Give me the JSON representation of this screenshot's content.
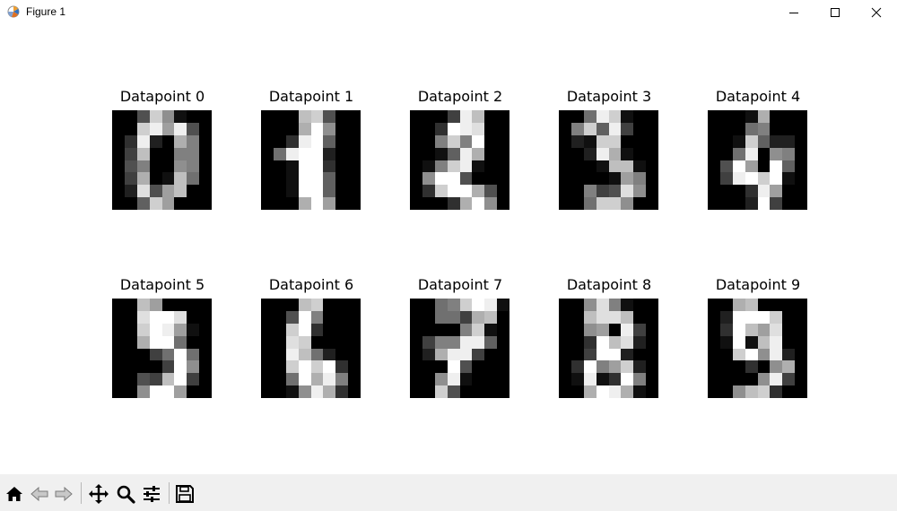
{
  "window": {
    "title": "Figure 1"
  },
  "figure": {
    "panels": [
      {
        "title": "Datapoint 0",
        "pixels": [
          [
            0,
            0,
            5,
            13,
            9,
            1,
            0,
            0
          ],
          [
            0,
            0,
            13,
            15,
            10,
            15,
            5,
            0
          ],
          [
            0,
            3,
            15,
            2,
            0,
            11,
            8,
            0
          ],
          [
            0,
            4,
            12,
            0,
            0,
            8,
            8,
            0
          ],
          [
            0,
            5,
            8,
            0,
            0,
            9,
            8,
            0
          ],
          [
            0,
            4,
            11,
            0,
            1,
            12,
            7,
            0
          ],
          [
            0,
            2,
            14,
            5,
            10,
            12,
            0,
            0
          ],
          [
            0,
            0,
            6,
            13,
            10,
            0,
            0,
            0
          ]
        ]
      },
      {
        "title": "Datapoint 1",
        "pixels": [
          [
            0,
            0,
            0,
            12,
            13,
            5,
            0,
            0
          ],
          [
            0,
            0,
            0,
            11,
            16,
            9,
            0,
            0
          ],
          [
            0,
            0,
            3,
            15,
            16,
            6,
            0,
            0
          ],
          [
            0,
            7,
            15,
            16,
            16,
            2,
            0,
            0
          ],
          [
            0,
            0,
            1,
            16,
            16,
            3,
            0,
            0
          ],
          [
            0,
            0,
            1,
            16,
            16,
            6,
            0,
            0
          ],
          [
            0,
            0,
            1,
            16,
            16,
            6,
            0,
            0
          ],
          [
            0,
            0,
            0,
            11,
            16,
            10,
            0,
            0
          ]
        ]
      },
      {
        "title": "Datapoint 2",
        "pixels": [
          [
            0,
            0,
            0,
            4,
            15,
            12,
            0,
            0
          ],
          [
            0,
            0,
            3,
            16,
            15,
            14,
            0,
            0
          ],
          [
            0,
            0,
            8,
            13,
            8,
            16,
            0,
            0
          ],
          [
            0,
            0,
            1,
            6,
            15,
            11,
            0,
            0
          ],
          [
            0,
            1,
            8,
            13,
            15,
            1,
            0,
            0
          ],
          [
            0,
            9,
            16,
            16,
            5,
            0,
            0,
            0
          ],
          [
            0,
            3,
            13,
            16,
            16,
            11,
            5,
            0
          ],
          [
            0,
            0,
            0,
            3,
            11,
            16,
            9,
            0
          ]
        ]
      },
      {
        "title": "Datapoint 3",
        "pixels": [
          [
            0,
            0,
            7,
            15,
            13,
            1,
            0,
            0
          ],
          [
            0,
            8,
            13,
            6,
            15,
            4,
            0,
            0
          ],
          [
            0,
            2,
            1,
            13,
            13,
            0,
            0,
            0
          ],
          [
            0,
            0,
            2,
            15,
            11,
            1,
            0,
            0
          ],
          [
            0,
            0,
            0,
            1,
            12,
            12,
            1,
            0
          ],
          [
            0,
            0,
            0,
            0,
            1,
            10,
            8,
            0
          ],
          [
            0,
            0,
            8,
            4,
            5,
            14,
            9,
            0
          ],
          [
            0,
            0,
            7,
            13,
            13,
            9,
            0,
            0
          ]
        ]
      },
      {
        "title": "Datapoint 4",
        "pixels": [
          [
            0,
            0,
            0,
            1,
            11,
            0,
            0,
            0
          ],
          [
            0,
            0,
            0,
            7,
            8,
            0,
            0,
            0
          ],
          [
            0,
            0,
            1,
            13,
            6,
            2,
            2,
            0
          ],
          [
            0,
            0,
            7,
            15,
            0,
            9,
            8,
            0
          ],
          [
            0,
            5,
            16,
            10,
            0,
            16,
            6,
            0
          ],
          [
            0,
            4,
            15,
            16,
            13,
            16,
            1,
            0
          ],
          [
            0,
            0,
            0,
            3,
            15,
            10,
            0,
            0
          ],
          [
            0,
            0,
            0,
            2,
            16,
            4,
            0,
            0
          ]
        ]
      },
      {
        "title": "Datapoint 5",
        "pixels": [
          [
            0,
            0,
            12,
            10,
            0,
            0,
            0,
            0
          ],
          [
            0,
            0,
            14,
            16,
            16,
            14,
            0,
            0
          ],
          [
            0,
            0,
            13,
            16,
            15,
            10,
            1,
            0
          ],
          [
            0,
            0,
            11,
            16,
            16,
            7,
            0,
            0
          ],
          [
            0,
            0,
            0,
            4,
            7,
            16,
            7,
            0
          ],
          [
            0,
            0,
            0,
            0,
            4,
            16,
            9,
            0
          ],
          [
            0,
            0,
            5,
            4,
            12,
            16,
            4,
            0
          ],
          [
            0,
            0,
            9,
            16,
            16,
            10,
            0,
            0
          ]
        ]
      },
      {
        "title": "Datapoint 6",
        "pixels": [
          [
            0,
            0,
            0,
            12,
            13,
            0,
            0,
            0
          ],
          [
            0,
            0,
            5,
            16,
            8,
            0,
            0,
            0
          ],
          [
            0,
            0,
            13,
            16,
            3,
            0,
            0,
            0
          ],
          [
            0,
            0,
            14,
            13,
            0,
            0,
            0,
            0
          ],
          [
            0,
            0,
            15,
            12,
            7,
            2,
            0,
            0
          ],
          [
            0,
            0,
            13,
            16,
            13,
            16,
            3,
            0
          ],
          [
            0,
            0,
            7,
            16,
            11,
            15,
            8,
            0
          ],
          [
            0,
            0,
            1,
            9,
            15,
            11,
            3,
            0
          ]
        ]
      },
      {
        "title": "Datapoint 7",
        "pixels": [
          [
            0,
            0,
            7,
            8,
            13,
            16,
            15,
            1
          ],
          [
            0,
            0,
            7,
            7,
            4,
            11,
            12,
            0
          ],
          [
            0,
            0,
            0,
            0,
            8,
            13,
            1,
            0
          ],
          [
            0,
            4,
            8,
            8,
            15,
            15,
            6,
            0
          ],
          [
            0,
            2,
            11,
            15,
            15,
            4,
            0,
            0
          ],
          [
            0,
            0,
            0,
            16,
            5,
            0,
            0,
            0
          ],
          [
            0,
            0,
            9,
            15,
            1,
            0,
            0,
            0
          ],
          [
            0,
            0,
            13,
            5,
            0,
            0,
            0,
            0
          ]
        ]
      },
      {
        "title": "Datapoint 8",
        "pixels": [
          [
            0,
            0,
            9,
            14,
            8,
            1,
            0,
            0
          ],
          [
            0,
            0,
            12,
            14,
            14,
            12,
            0,
            0
          ],
          [
            0,
            0,
            9,
            10,
            0,
            15,
            4,
            0
          ],
          [
            0,
            0,
            3,
            16,
            12,
            14,
            2,
            0
          ],
          [
            0,
            0,
            4,
            16,
            16,
            2,
            0,
            0
          ],
          [
            0,
            3,
            16,
            8,
            10,
            13,
            2,
            0
          ],
          [
            0,
            1,
            15,
            1,
            3,
            16,
            8,
            0
          ],
          [
            0,
            0,
            11,
            16,
            15,
            11,
            1,
            0
          ]
        ]
      },
      {
        "title": "Datapoint 9",
        "pixels": [
          [
            0,
            0,
            11,
            12,
            0,
            0,
            0,
            0
          ],
          [
            0,
            2,
            16,
            16,
            16,
            13,
            0,
            0
          ],
          [
            0,
            3,
            16,
            12,
            10,
            14,
            0,
            0
          ],
          [
            0,
            1,
            16,
            1,
            12,
            15,
            0,
            0
          ],
          [
            0,
            0,
            13,
            16,
            9,
            15,
            2,
            0
          ],
          [
            0,
            0,
            0,
            3,
            0,
            9,
            11,
            0
          ],
          [
            0,
            0,
            0,
            0,
            9,
            15,
            4,
            0
          ],
          [
            0,
            0,
            9,
            12,
            13,
            3,
            0,
            0
          ]
        ]
      }
    ]
  },
  "toolbar": {
    "buttons": [
      {
        "icon": "home-icon"
      },
      {
        "icon": "back-arrow-icon"
      },
      {
        "icon": "forward-arrow-icon"
      },
      {
        "icon": "pan-icon"
      },
      {
        "icon": "zoom-icon"
      },
      {
        "icon": "configure-subplots-icon"
      },
      {
        "icon": "save-icon"
      }
    ]
  },
  "colors": {
    "toolbar_bg": "#f0f0f0",
    "window_bg": "#ffffff"
  }
}
